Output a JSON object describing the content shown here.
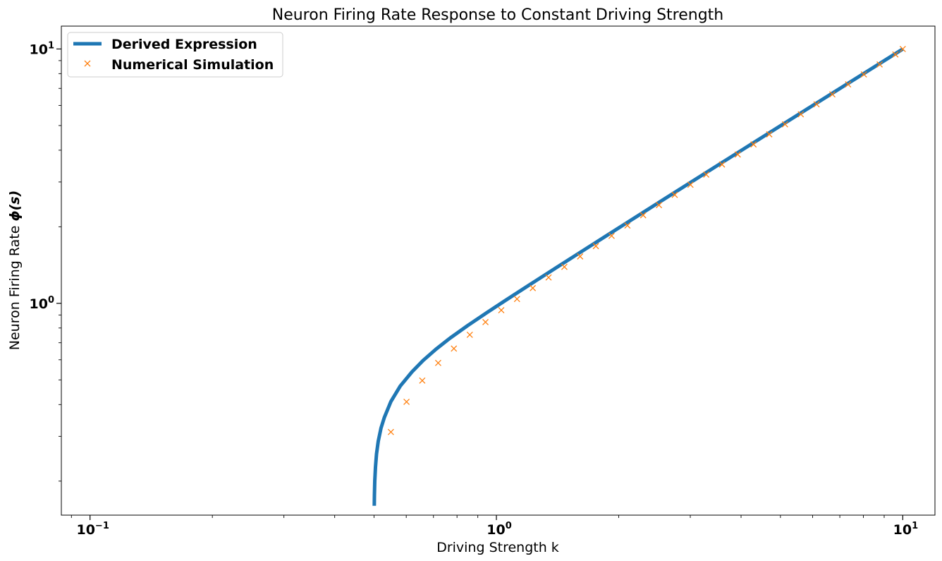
{
  "chart_data": {
    "type": "line",
    "title": "Neuron Firing Rate Response to Constant Driving Strength",
    "xlabel": "Driving Strength k",
    "ylabel_prefix": "Neuron Firing Rate ",
    "ylabel_symbol": "ϕ(s)",
    "xscale": "log",
    "yscale": "log",
    "xlim": [
      0.085,
      12.0
    ],
    "ylim": [
      0.147,
      12.3
    ],
    "x_ticks": [
      {
        "value": 0.1,
        "base": "10",
        "exp": "−1"
      },
      {
        "value": 1,
        "base": "10",
        "exp": "0"
      },
      {
        "value": 10,
        "base": "10",
        "exp": "1"
      }
    ],
    "y_ticks": [
      {
        "value": 1,
        "base": "10",
        "exp": "0"
      },
      {
        "value": 10,
        "base": "10",
        "exp": "1"
      }
    ],
    "grid": false,
    "legend_position": "top-left",
    "colors": {
      "derived": "#1f77b4",
      "numerical": "#ff7f0e"
    },
    "series": [
      {
        "name": "Derived Expression",
        "style": "line",
        "x": [
          0.5006,
          0.501,
          0.502,
          0.504,
          0.507,
          0.512,
          0.52,
          0.53,
          0.55,
          0.58,
          0.62,
          0.66,
          0.71,
          0.77,
          0.85,
          0.95,
          1.05,
          1.2,
          1.4,
          1.6,
          1.9,
          2.2,
          2.6,
          3.1,
          3.7,
          4.4,
          5.2,
          6.2,
          7.4,
          8.7,
          10.0
        ],
        "y": [
          0.16,
          0.176,
          0.2,
          0.227,
          0.256,
          0.287,
          0.323,
          0.356,
          0.411,
          0.473,
          0.538,
          0.596,
          0.66,
          0.731,
          0.818,
          0.922,
          1.024,
          1.176,
          1.377,
          1.578,
          1.879,
          2.18,
          2.582,
          3.083,
          3.685,
          4.387,
          5.189,
          6.19,
          7.391,
          8.692,
          9.993
        ]
      },
      {
        "name": "Numerical Simulation",
        "style": "marker-x",
        "x": [
          0.55,
          0.601,
          0.657,
          0.719,
          0.786,
          0.86,
          0.94,
          1.028,
          1.124,
          1.229,
          1.344,
          1.47,
          1.607,
          1.757,
          1.921,
          2.101,
          2.297,
          2.512,
          2.747,
          3.003,
          3.284,
          3.591,
          3.926,
          4.293,
          4.694,
          5.132,
          5.612,
          6.136,
          6.71,
          7.336,
          8.022,
          8.772,
          9.591,
          10.0
        ],
        "y": [
          0.312,
          0.41,
          0.497,
          0.583,
          0.664,
          0.752,
          0.844,
          0.94,
          1.04,
          1.148,
          1.264,
          1.391,
          1.529,
          1.679,
          1.843,
          2.023,
          2.22,
          2.434,
          2.67,
          2.926,
          3.207,
          3.514,
          3.849,
          4.216,
          4.617,
          5.056,
          5.536,
          6.06,
          6.634,
          7.26,
          7.946,
          8.696,
          9.515,
          10.0
        ]
      }
    ]
  }
}
